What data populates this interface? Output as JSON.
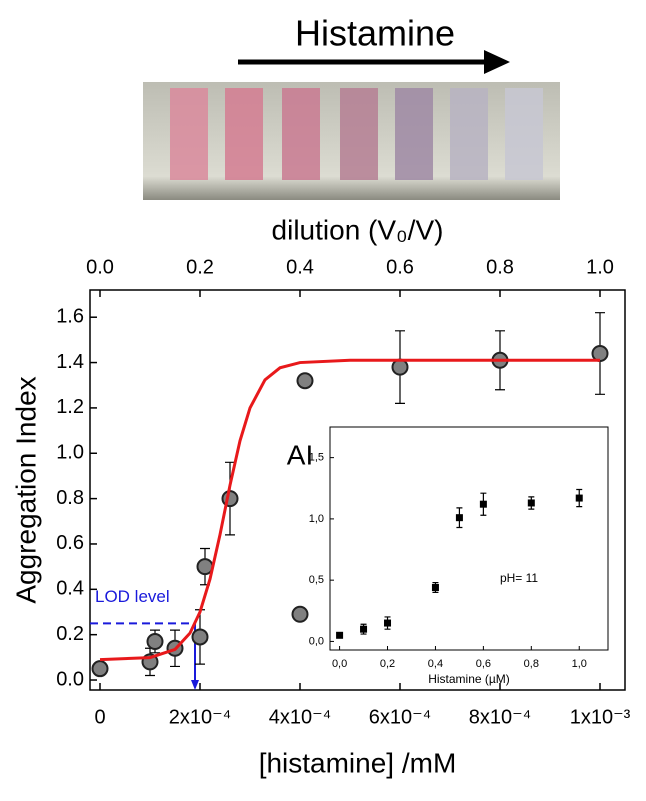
{
  "photo_label": "Histamine",
  "chart_data": [
    {
      "type": "scatter",
      "x_label": "[histamine] /mM",
      "y_label": "Aggregation Index",
      "x2_label": "dilution (V₀/V)",
      "xlim": [
        -2e-05,
        0.00105
      ],
      "ylim": [
        -0.044,
        1.72
      ],
      "x2lim": [
        -0.02,
        1.05
      ],
      "xticks": [
        0,
        {
          "value": 0.0002,
          "label": "2x10⁻⁴"
        },
        {
          "value": 0.0004,
          "label": "4x10⁻⁴"
        },
        {
          "value": 0.0006,
          "label": "6x10⁻⁴"
        },
        {
          "value": 0.0008,
          "label": "8x10⁻⁴"
        },
        {
          "value": 0.001,
          "label": "1x10⁻³"
        }
      ],
      "yticks": [
        {
          "value": 0,
          "label": "0.0"
        },
        {
          "value": 0.2,
          "label": "0.2"
        },
        {
          "value": 0.4,
          "label": "0.4"
        },
        {
          "value": 0.6,
          "label": "0.6"
        },
        {
          "value": 0.8,
          "label": "0.8"
        },
        {
          "value": 1,
          "label": "1.0"
        },
        {
          "value": 1.2,
          "label": "1.2"
        },
        {
          "value": 1.4,
          "label": "1.4"
        },
        {
          "value": 1.6,
          "label": "1.6"
        }
      ],
      "x2ticks": [
        {
          "value": 0,
          "label": "0.0"
        },
        {
          "value": 0.2,
          "label": "0.2"
        },
        {
          "value": 0.4,
          "label": "0.4"
        },
        {
          "value": 0.6,
          "label": "0.6"
        },
        {
          "value": 0.8,
          "label": "0.8"
        },
        {
          "value": 1,
          "label": "1.0"
        }
      ],
      "series": [
        {
          "kind": "points",
          "color": "#808080",
          "x": [
            0,
            0.0001,
            0.00011,
            0.00015,
            0.0002,
            0.00021,
            0.00026,
            0.0004,
            0.00041,
            0.0006,
            0.0008,
            0.001
          ],
          "values": [
            0.05,
            0.08,
            0.17,
            0.14,
            0.19,
            0.5,
            0.8,
            0.29,
            1.32,
            1.38,
            1.41,
            1.44
          ],
          "errors": [
            null,
            0.06,
            0.05,
            0.08,
            0.12,
            0.08,
            0.16,
            null,
            null,
            0.16,
            0.13,
            0.18
          ]
        },
        {
          "kind": "line",
          "color": "#e8191b",
          "x": [
            0,
            0.0001,
            0.00015,
            0.00018,
            0.0002,
            0.00022,
            0.00024,
            0.00026,
            0.00028,
            0.0003,
            0.00033,
            0.00036,
            0.0004,
            0.0005,
            0.0007,
            0.001
          ],
          "values": [
            0.09,
            0.099,
            0.135,
            0.207,
            0.3,
            0.445,
            0.641,
            0.859,
            1.055,
            1.2,
            1.324,
            1.377,
            1.4,
            1.41,
            1.41,
            1.41
          ]
        }
      ],
      "lod": {
        "label": "LOD level",
        "y": 0.25,
        "x": 0.00019,
        "color": "#1a1adb"
      }
    },
    {
      "type": "scatter",
      "y_label": "AI",
      "x_label": "Histamine (µM)",
      "annotation": "pH= 11",
      "xlim": [
        -0.04,
        1.12
      ],
      "ylim": [
        -0.07,
        1.75
      ],
      "xticks": [
        {
          "value": 0,
          "label": "0,0"
        },
        {
          "value": 0.2,
          "label": "0,2"
        },
        {
          "value": 0.4,
          "label": "0,4"
        },
        {
          "value": 0.6,
          "label": "0,6"
        },
        {
          "value": 0.8,
          "label": "0,8"
        },
        {
          "value": 1,
          "label": "1,0"
        }
      ],
      "yticks": [
        {
          "value": 0,
          "label": "0,0"
        },
        {
          "value": 0.5,
          "label": "0,5"
        },
        {
          "value": 1,
          "label": "1,0"
        },
        {
          "value": 1.5,
          "label": "1,5"
        }
      ],
      "series": [
        {
          "kind": "squares",
          "color": "#000000",
          "x": [
            0,
            0.1,
            0.2,
            0.4,
            0.5,
            0.6,
            0.8,
            1
          ],
          "values": [
            0.05,
            0.1,
            0.15,
            0.44,
            1.01,
            1.12,
            1.13,
            1.17
          ],
          "errors": [
            null,
            0.04,
            0.05,
            0.04,
            0.08,
            0.09,
            0.05,
            0.07
          ]
        }
      ]
    }
  ]
}
